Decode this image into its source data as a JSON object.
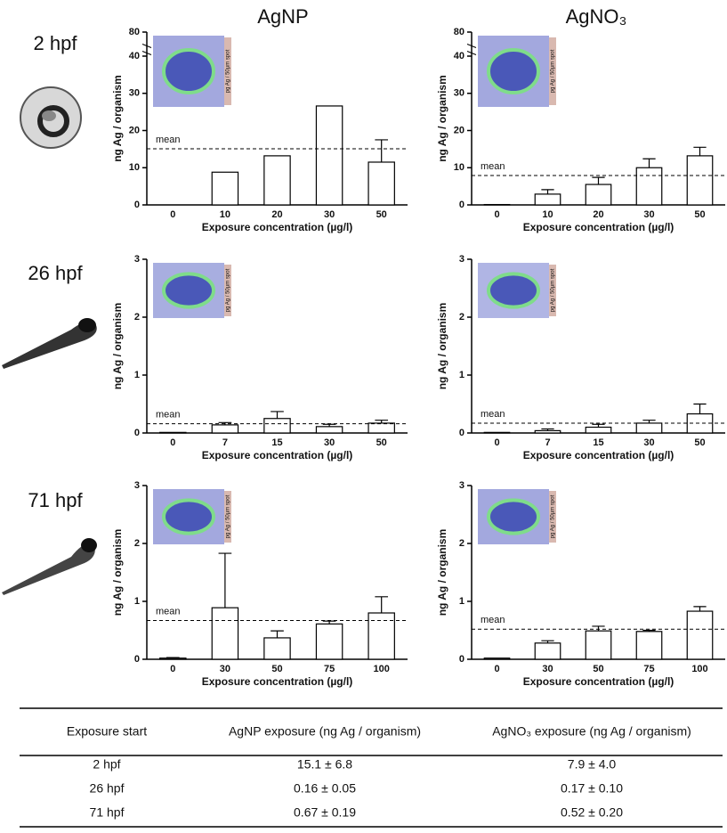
{
  "column_titles": [
    "AgNP",
    "AgNO₃"
  ],
  "row_labels": [
    "2 hpf",
    "26 hpf",
    "71 hpf"
  ],
  "chart_data": [
    {
      "type": "bar",
      "ylabel": "ng Ag / organism",
      "xlabel": "Exposure concentration (µg/l)",
      "categories": [
        "0",
        "10",
        "20",
        "30",
        "50"
      ],
      "values": [
        0,
        8.8,
        13.2,
        26.6,
        11.5
      ],
      "errors": [
        null,
        null,
        null,
        null,
        6
      ],
      "ylim": [
        0,
        80
      ],
      "axis_break": [
        40,
        80
      ],
      "yticks": [
        0,
        10,
        20,
        30,
        40,
        80
      ],
      "mean": 15.1,
      "mean_label": "mean",
      "inset_label": "pg Ag / 50µm spot",
      "color": "#ffffff"
    },
    {
      "type": "bar",
      "ylabel": "ng Ag / organism",
      "xlabel": "Exposure concentration (µg/l)",
      "categories": [
        "0",
        "10",
        "20",
        "30",
        "50"
      ],
      "values": [
        0.1,
        2.9,
        5.5,
        10,
        13.2
      ],
      "errors": [
        null,
        1.2,
        1.9,
        2.4,
        2.3
      ],
      "ylim": [
        0,
        80
      ],
      "axis_break": [
        40,
        80
      ],
      "yticks": [
        0,
        10,
        20,
        30,
        40,
        80
      ],
      "mean": 7.9,
      "mean_label": "mean",
      "inset_label": "pg Ag / 50µm spot",
      "color": "#ffffff"
    },
    {
      "type": "bar",
      "ylabel": "ng Ag / organism",
      "xlabel": "Exposure concentration (µg/l)",
      "categories": [
        "0",
        "7",
        "15",
        "30",
        "50"
      ],
      "values": [
        0.01,
        0.14,
        0.25,
        0.11,
        0.17
      ],
      "errors": [
        null,
        0.04,
        0.12,
        0.04,
        0.05
      ],
      "ylim": [
        0,
        3
      ],
      "yticks": [
        0,
        1,
        2,
        3
      ],
      "mean": 0.16,
      "mean_label": "mean",
      "inset_label": "pg Ag / 50µm spot",
      "color": "#ffffff"
    },
    {
      "type": "bar",
      "ylabel": "ng Ag / organism",
      "xlabel": "Exposure concentration (µg/l)",
      "categories": [
        "0",
        "7",
        "15",
        "30",
        "50"
      ],
      "values": [
        0.01,
        0.04,
        0.1,
        0.17,
        0.33
      ],
      "errors": [
        null,
        0.03,
        0.05,
        0.05,
        0.17
      ],
      "ylim": [
        0,
        3
      ],
      "yticks": [
        0,
        1,
        2,
        3
      ],
      "mean": 0.17,
      "mean_label": "mean",
      "inset_label": "pg Ag / 50µm spot",
      "color": "#ffffff"
    },
    {
      "type": "bar",
      "ylabel": "ng Ag / organism",
      "xlabel": "Exposure concentration (µg/l)",
      "categories": [
        "0",
        "30",
        "50",
        "75",
        "100"
      ],
      "values": [
        0.02,
        0.89,
        0.37,
        0.61,
        0.8
      ],
      "errors": [
        0.01,
        0.94,
        0.12,
        0.05,
        0.28
      ],
      "ylim": [
        0,
        3
      ],
      "yticks": [
        0,
        1,
        2,
        3
      ],
      "mean": 0.67,
      "mean_label": "mean",
      "inset_label": "pg Ag / 50µm spot",
      "color": "#ffffff"
    },
    {
      "type": "bar",
      "ylabel": "ng Ag / organism",
      "xlabel": "Exposure concentration (µg/l)",
      "categories": [
        "0",
        "30",
        "50",
        "75",
        "100"
      ],
      "values": [
        0.02,
        0.28,
        0.49,
        0.48,
        0.83
      ],
      "errors": [
        null,
        0.04,
        0.08,
        0.02,
        0.08
      ],
      "ylim": [
        0,
        3
      ],
      "yticks": [
        0,
        1,
        2,
        3
      ],
      "mean": 0.52,
      "mean_label": "mean",
      "inset_label": "pg Ag / 50µm spot",
      "color": "#ffffff"
    }
  ],
  "table": {
    "header": [
      "Exposure start",
      "AgNP exposure (ng Ag / organism)",
      "AgNO₃ exposure (ng Ag / organism)"
    ],
    "rows": [
      [
        "2 hpf",
        "15.1 ± 6.8",
        "7.9 ± 4.0"
      ],
      [
        "26 hpf",
        "0.16 ± 0.05",
        "0.17 ± 0.10"
      ],
      [
        "71 hpf",
        "0.67 ± 0.19",
        "0.52 ± 0.20"
      ]
    ]
  }
}
